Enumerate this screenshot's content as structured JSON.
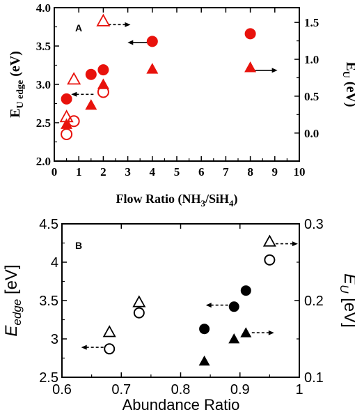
{
  "chart_data": [
    {
      "panel": "A",
      "type": "scatter",
      "xlabel": "Flow Ratio (NH3/SiH4)",
      "ylabel_left": "E_U edge (eV)",
      "ylabel_right": "E_U (eV)",
      "xlim": [
        0,
        10
      ],
      "ylim_left": [
        2.0,
        4.0
      ],
      "ylim_right": [
        -0.38,
        1.7
      ],
      "x_ticks": [
        "0",
        "1",
        "2",
        "3",
        "4",
        "5",
        "6",
        "7",
        "8",
        "9",
        "10"
      ],
      "y_ticks_left": [
        "2.0",
        "2.5",
        "3.0",
        "3.5",
        "4.0"
      ],
      "y_ticks_right": [
        "0.0",
        "0.5",
        "1.0",
        "1.5"
      ],
      "color": "#e8120c",
      "series": [
        {
          "axis": "left",
          "marker": "filled-circle",
          "x": [
            0.5,
            1.5,
            2.0,
            4.0,
            8.0
          ],
          "y": [
            2.81,
            3.13,
            3.19,
            3.56,
            3.66
          ]
        },
        {
          "axis": "left",
          "marker": "open-circle",
          "x": [
            0.5,
            0.8,
            2.0
          ],
          "y": [
            2.35,
            2.52,
            2.9
          ]
        },
        {
          "axis": "right",
          "marker": "filled-triangle",
          "x": [
            0.5,
            1.5,
            2.0,
            4.0,
            8.0
          ],
          "y": [
            0.12,
            0.38,
            0.66,
            0.87,
            0.89
          ]
        },
        {
          "axis": "right",
          "marker": "open-triangle",
          "x": [
            0.5,
            0.8,
            2.0
          ],
          "y": [
            0.22,
            0.73,
            1.52
          ]
        }
      ],
      "arrows": [
        {
          "x": 2.2,
          "y_axis": "right",
          "y": 1.47,
          "direction": "right",
          "style": "dashed"
        },
        {
          "x": 3.9,
          "y_axis": "left",
          "y": 3.545,
          "direction": "left",
          "style": "solid"
        },
        {
          "x": 1.6,
          "y_axis": "left",
          "y": 2.87,
          "direction": "left",
          "style": "dashed"
        },
        {
          "x": 8.2,
          "y_axis": "right",
          "y": 0.85,
          "direction": "right",
          "style": "solid"
        }
      ]
    },
    {
      "panel": "B",
      "type": "scatter",
      "xlabel": "Abundance Ratio",
      "ylabel_left": "E_edge [eV]",
      "ylabel_right": "E_U [eV]",
      "xlim": [
        0.6,
        1.0
      ],
      "ylim_left": [
        2.5,
        4.5
      ],
      "ylim_right": [
        0.1,
        0.3
      ],
      "x_ticks": [
        "0.6",
        "0.7",
        "0.8",
        "0.9",
        "1"
      ],
      "y_ticks_left": [
        "2.5",
        "3",
        "3.5",
        "4",
        "4.5"
      ],
      "y_ticks_right": [
        "0.1",
        "0.2",
        "0.3"
      ],
      "color": "#000000",
      "series": [
        {
          "axis": "left",
          "marker": "filled-circle",
          "x": [
            0.84,
            0.89,
            0.91
          ],
          "y": [
            3.13,
            3.42,
            3.63
          ]
        },
        {
          "axis": "left",
          "marker": "open-circle",
          "x": [
            0.68,
            0.73,
            0.95
          ],
          "y": [
            2.87,
            3.34,
            4.03
          ]
        },
        {
          "axis": "right",
          "marker": "filled-triangle",
          "x": [
            0.84,
            0.89,
            0.91
          ],
          "y": [
            0.121,
            0.15,
            0.158
          ]
        },
        {
          "axis": "right",
          "marker": "open-triangle",
          "x": [
            0.68,
            0.73,
            0.95
          ],
          "y": [
            0.159,
            0.198,
            0.277
          ]
        }
      ],
      "arrows": [
        {
          "x": 0.67,
          "y_axis": "left",
          "y": 2.89,
          "direction": "left",
          "style": "dashed"
        },
        {
          "x": 0.88,
          "y_axis": "left",
          "y": 3.44,
          "direction": "left",
          "style": "dashed"
        },
        {
          "x": 0.92,
          "y_axis": "right",
          "y": 0.158,
          "direction": "right",
          "style": "dashed"
        },
        {
          "x": 0.96,
          "y_axis": "right",
          "y": 0.274,
          "direction": "right",
          "style": "dashed"
        }
      ]
    }
  ]
}
